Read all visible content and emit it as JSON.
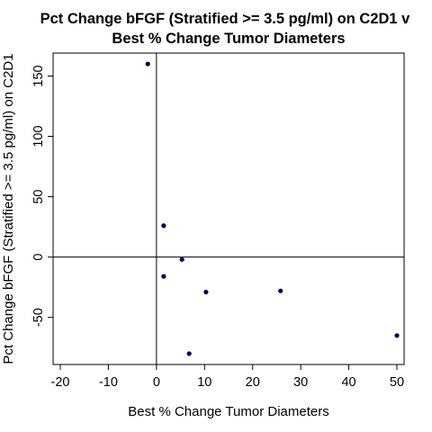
{
  "chart_data": {
    "type": "scatter",
    "title_lines": [
      "Pct Change bFGF (Stratified >= 3.5 pg/ml) on C2D1 v",
      "Best % Change Tumor Diameters"
    ],
    "xlabel": "Best % Change Tumor Diameters",
    "ylabel": "Pct Change bFGF (Stratified >= 3.5 pg/ml) on C2D1",
    "xlim": [
      -21.5,
      51.5
    ],
    "ylim": [
      -89,
      169
    ],
    "x_ticks": [
      -20,
      -10,
      0,
      10,
      20,
      30,
      40,
      50
    ],
    "x_tick_labels": [
      "-20",
      "-10",
      "0",
      "10",
      "20",
      "30",
      "40",
      "50"
    ],
    "y_ticks": [
      -50,
      0,
      50,
      100,
      150
    ],
    "y_tick_labels": [
      "-50",
      "0",
      "50",
      "100",
      "150"
    ],
    "reference_lines": {
      "x": 0,
      "y": 0
    },
    "grid": false,
    "legend": "none",
    "point_color": "#00005a",
    "points": [
      {
        "x": -1.8,
        "y": 160
      },
      {
        "x": 1.5,
        "y": 26
      },
      {
        "x": 1.5,
        "y": -16
      },
      {
        "x": 5.3,
        "y": -2
      },
      {
        "x": 10.3,
        "y": -29
      },
      {
        "x": 25.8,
        "y": -28
      },
      {
        "x": 6.8,
        "y": -80
      },
      {
        "x": 50.0,
        "y": -65
      }
    ]
  }
}
